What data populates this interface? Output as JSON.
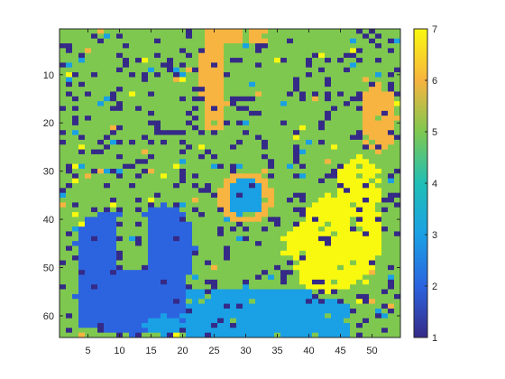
{
  "chart_data": {
    "type": "heatmap",
    "title": "",
    "xlabel": "",
    "ylabel": "",
    "n_cols": 54,
    "n_rows": 64,
    "x_ticks": [
      5,
      10,
      15,
      20,
      25,
      30,
      35,
      40,
      45,
      50
    ],
    "y_ticks": [
      10,
      20,
      30,
      40,
      50,
      60
    ],
    "xlim": [
      0.5,
      54.5
    ],
    "ylim": [
      0.5,
      64.5
    ],
    "y_direction": "reverse",
    "colorbar": {
      "min": 1,
      "max": 7,
      "ticks": [
        1,
        2,
        3,
        4,
        5,
        6,
        7
      ],
      "colormap": "parula"
    },
    "background_value": 5,
    "noise_values": [
      1,
      3,
      6,
      7
    ],
    "regions": [
      {
        "value": 2,
        "description_cols": [
          3,
          21
        ],
        "description_rows": [
          38,
          64
        ]
      },
      {
        "value": 3,
        "description_cols": [
          20,
          40
        ],
        "description_rows": [
          54,
          64
        ]
      },
      {
        "value": 3,
        "description_cols": [
          38,
          46
        ],
        "description_rows": [
          55,
          64
        ]
      },
      {
        "value": 7,
        "description_cols": [
          37,
          52
        ],
        "description_rows": [
          27,
          56
        ]
      },
      {
        "value": 6,
        "description_cols": [
          23,
          26
        ],
        "description_rows": [
          1,
          21
        ]
      },
      {
        "value": 6,
        "description_cols": [
          26,
          33
        ],
        "description_rows": [
          1,
          4
        ]
      },
      {
        "value": 6,
        "description_cols": [
          48,
          54
        ],
        "description_rows": [
          13,
          26
        ]
      },
      {
        "value": 6,
        "description_cols": [
          26,
          34
        ],
        "description_rows": [
          29,
          42
        ]
      },
      {
        "value": 3,
        "description_cols": [
          28,
          33
        ],
        "description_rows": [
          32,
          39
        ]
      }
    ],
    "colors": {
      "1": "#352a87",
      "2": "#2c64e0",
      "3": "#1aa0e4",
      "4": "#1fbfb6",
      "5": "#7fc850",
      "6": "#f7b440",
      "7": "#f9f90f"
    }
  }
}
